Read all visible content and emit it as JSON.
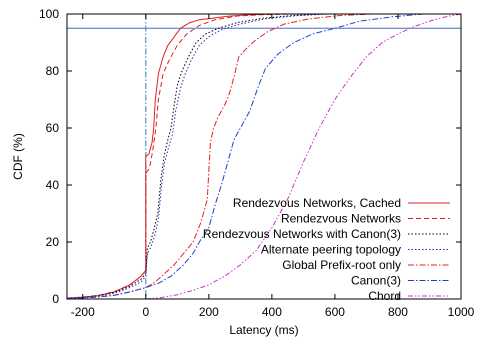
{
  "chart_data": {
    "type": "line",
    "title": "",
    "xlabel": "Latency (ms)",
    "ylabel": "CDF (%)",
    "xlim": [
      -250,
      1000
    ],
    "ylim": [
      0,
      100
    ],
    "xticks": [
      -200,
      0,
      200,
      400,
      600,
      800,
      1000
    ],
    "yticks": [
      0,
      20,
      40,
      60,
      80,
      100
    ],
    "grid": false,
    "legend_position": "right",
    "reference_lines": [
      {
        "orientation": "horizontal",
        "value": 95,
        "color": "#4a6fd0",
        "style": "solid"
      },
      {
        "orientation": "vertical",
        "value": 0,
        "color": "#3a7ab0",
        "style": "dash-dot"
      }
    ],
    "series": [
      {
        "name": "Rendezvous Networks, Cached",
        "color": "#e02020",
        "style": "solid",
        "points": [
          [
            -250,
            0.3
          ],
          [
            -200,
            0.6
          ],
          [
            -150,
            1.2
          ],
          [
            -100,
            2.5
          ],
          [
            -50,
            5
          ],
          [
            -15,
            8
          ],
          [
            0,
            10
          ],
          [
            0,
            50
          ],
          [
            10,
            51
          ],
          [
            20,
            55
          ],
          [
            25,
            60
          ],
          [
            30,
            70
          ],
          [
            40,
            79
          ],
          [
            55,
            85
          ],
          [
            70,
            89
          ],
          [
            90,
            92
          ],
          [
            110,
            95
          ],
          [
            140,
            97
          ],
          [
            170,
            98
          ],
          [
            210,
            98.5
          ],
          [
            260,
            99.2
          ],
          [
            320,
            99.7
          ],
          [
            400,
            100
          ],
          [
            1000,
            100
          ]
        ]
      },
      {
        "name": "Rendezvous Networks",
        "color": "#e02020",
        "style": "dashed",
        "points": [
          [
            -250,
            0.3
          ],
          [
            -200,
            0.7
          ],
          [
            -150,
            1.3
          ],
          [
            -100,
            2.6
          ],
          [
            -50,
            5
          ],
          [
            -15,
            8
          ],
          [
            0,
            10
          ],
          [
            0,
            44
          ],
          [
            12,
            46
          ],
          [
            22,
            52
          ],
          [
            32,
            60
          ],
          [
            40,
            70
          ],
          [
            55,
            79
          ],
          [
            75,
            84
          ],
          [
            100,
            89
          ],
          [
            130,
            93
          ],
          [
            170,
            96
          ],
          [
            220,
            98
          ],
          [
            290,
            99.3
          ],
          [
            380,
            99.8
          ],
          [
            480,
            100
          ],
          [
            1000,
            100
          ]
        ]
      },
      {
        "name": "Rendezvous Networks with Canon(3)",
        "color": "#000000",
        "style": "dotted",
        "points": [
          [
            -250,
            0.3
          ],
          [
            -200,
            0.6
          ],
          [
            -150,
            1.2
          ],
          [
            -100,
            2.3
          ],
          [
            -50,
            4.5
          ],
          [
            -15,
            7
          ],
          [
            0,
            9
          ],
          [
            5,
            18
          ],
          [
            15,
            20
          ],
          [
            25,
            24
          ],
          [
            38,
            30
          ],
          [
            48,
            42
          ],
          [
            58,
            50
          ],
          [
            68,
            55
          ],
          [
            80,
            60
          ],
          [
            90,
            68
          ],
          [
            100,
            75
          ],
          [
            115,
            80
          ],
          [
            135,
            85
          ],
          [
            160,
            90
          ],
          [
            190,
            93
          ],
          [
            230,
            95
          ],
          [
            290,
            97
          ],
          [
            370,
            98.5
          ],
          [
            470,
            99.5
          ],
          [
            560,
            100
          ],
          [
            1000,
            100
          ]
        ]
      },
      {
        "name": "Alternate peering topology",
        "color": "#2030c0",
        "style": "dotted",
        "points": [
          [
            -250,
            0.3
          ],
          [
            -200,
            0.5
          ],
          [
            -150,
            1
          ],
          [
            -100,
            2
          ],
          [
            -50,
            4
          ],
          [
            -15,
            6
          ],
          [
            0,
            8
          ],
          [
            5,
            16
          ],
          [
            15,
            18
          ],
          [
            28,
            22
          ],
          [
            40,
            28
          ],
          [
            50,
            40
          ],
          [
            60,
            48
          ],
          [
            72,
            53
          ],
          [
            85,
            58
          ],
          [
            95,
            66
          ],
          [
            110,
            74
          ],
          [
            125,
            79
          ],
          [
            145,
            84
          ],
          [
            170,
            89
          ],
          [
            200,
            92
          ],
          [
            240,
            94.5
          ],
          [
            300,
            96.5
          ],
          [
            380,
            98.3
          ],
          [
            480,
            99.4
          ],
          [
            580,
            100
          ],
          [
            1000,
            100
          ]
        ]
      },
      {
        "name": "Global Prefix-root only",
        "color": "#e02020",
        "style": "dash-dot",
        "points": [
          [
            -250,
            0.2
          ],
          [
            -200,
            0.4
          ],
          [
            -150,
            0.7
          ],
          [
            -100,
            1.3
          ],
          [
            -50,
            2.5
          ],
          [
            0,
            4
          ],
          [
            30,
            6
          ],
          [
            60,
            9
          ],
          [
            90,
            12
          ],
          [
            120,
            16
          ],
          [
            150,
            20
          ],
          [
            175,
            27
          ],
          [
            195,
            35
          ],
          [
            205,
            55
          ],
          [
            215,
            60
          ],
          [
            230,
            64
          ],
          [
            250,
            68
          ],
          [
            265,
            72
          ],
          [
            280,
            78
          ],
          [
            295,
            85
          ],
          [
            320,
            88
          ],
          [
            350,
            91
          ],
          [
            390,
            94
          ],
          [
            440,
            96.5
          ],
          [
            520,
            98.3
          ],
          [
            620,
            99.5
          ],
          [
            720,
            100
          ],
          [
            1000,
            100
          ]
        ]
      },
      {
        "name": "Canon(3)",
        "color": "#2040d0",
        "style": "dash-dot",
        "points": [
          [
            -250,
            0.2
          ],
          [
            -200,
            0.4
          ],
          [
            -150,
            0.7
          ],
          [
            -100,
            1.3
          ],
          [
            -50,
            2.5
          ],
          [
            0,
            4
          ],
          [
            40,
            5.5
          ],
          [
            80,
            8
          ],
          [
            120,
            12
          ],
          [
            150,
            16
          ],
          [
            175,
            21
          ],
          [
            200,
            25
          ],
          [
            220,
            33
          ],
          [
            240,
            40
          ],
          [
            260,
            48
          ],
          [
            280,
            56
          ],
          [
            300,
            60
          ],
          [
            330,
            66
          ],
          [
            355,
            74
          ],
          [
            380,
            81
          ],
          [
            420,
            86
          ],
          [
            470,
            90
          ],
          [
            530,
            93
          ],
          [
            600,
            95
          ],
          [
            680,
            97.5
          ],
          [
            780,
            99
          ],
          [
            880,
            100
          ],
          [
            1000,
            100
          ]
        ]
      },
      {
        "name": "Chord",
        "color": "#cc30cc",
        "style": "dash-dot-dot",
        "points": [
          [
            0,
            0
          ],
          [
            50,
            0.5
          ],
          [
            100,
            1.5
          ],
          [
            150,
            3
          ],
          [
            200,
            5
          ],
          [
            250,
            8
          ],
          [
            300,
            12
          ],
          [
            350,
            17
          ],
          [
            400,
            25
          ],
          [
            450,
            35
          ],
          [
            500,
            48
          ],
          [
            550,
            60
          ],
          [
            600,
            70
          ],
          [
            650,
            78
          ],
          [
            700,
            85
          ],
          [
            750,
            90
          ],
          [
            800,
            93
          ],
          [
            850,
            95.5
          ],
          [
            900,
            97.5
          ],
          [
            950,
            99
          ],
          [
            1000,
            100
          ]
        ]
      }
    ]
  }
}
